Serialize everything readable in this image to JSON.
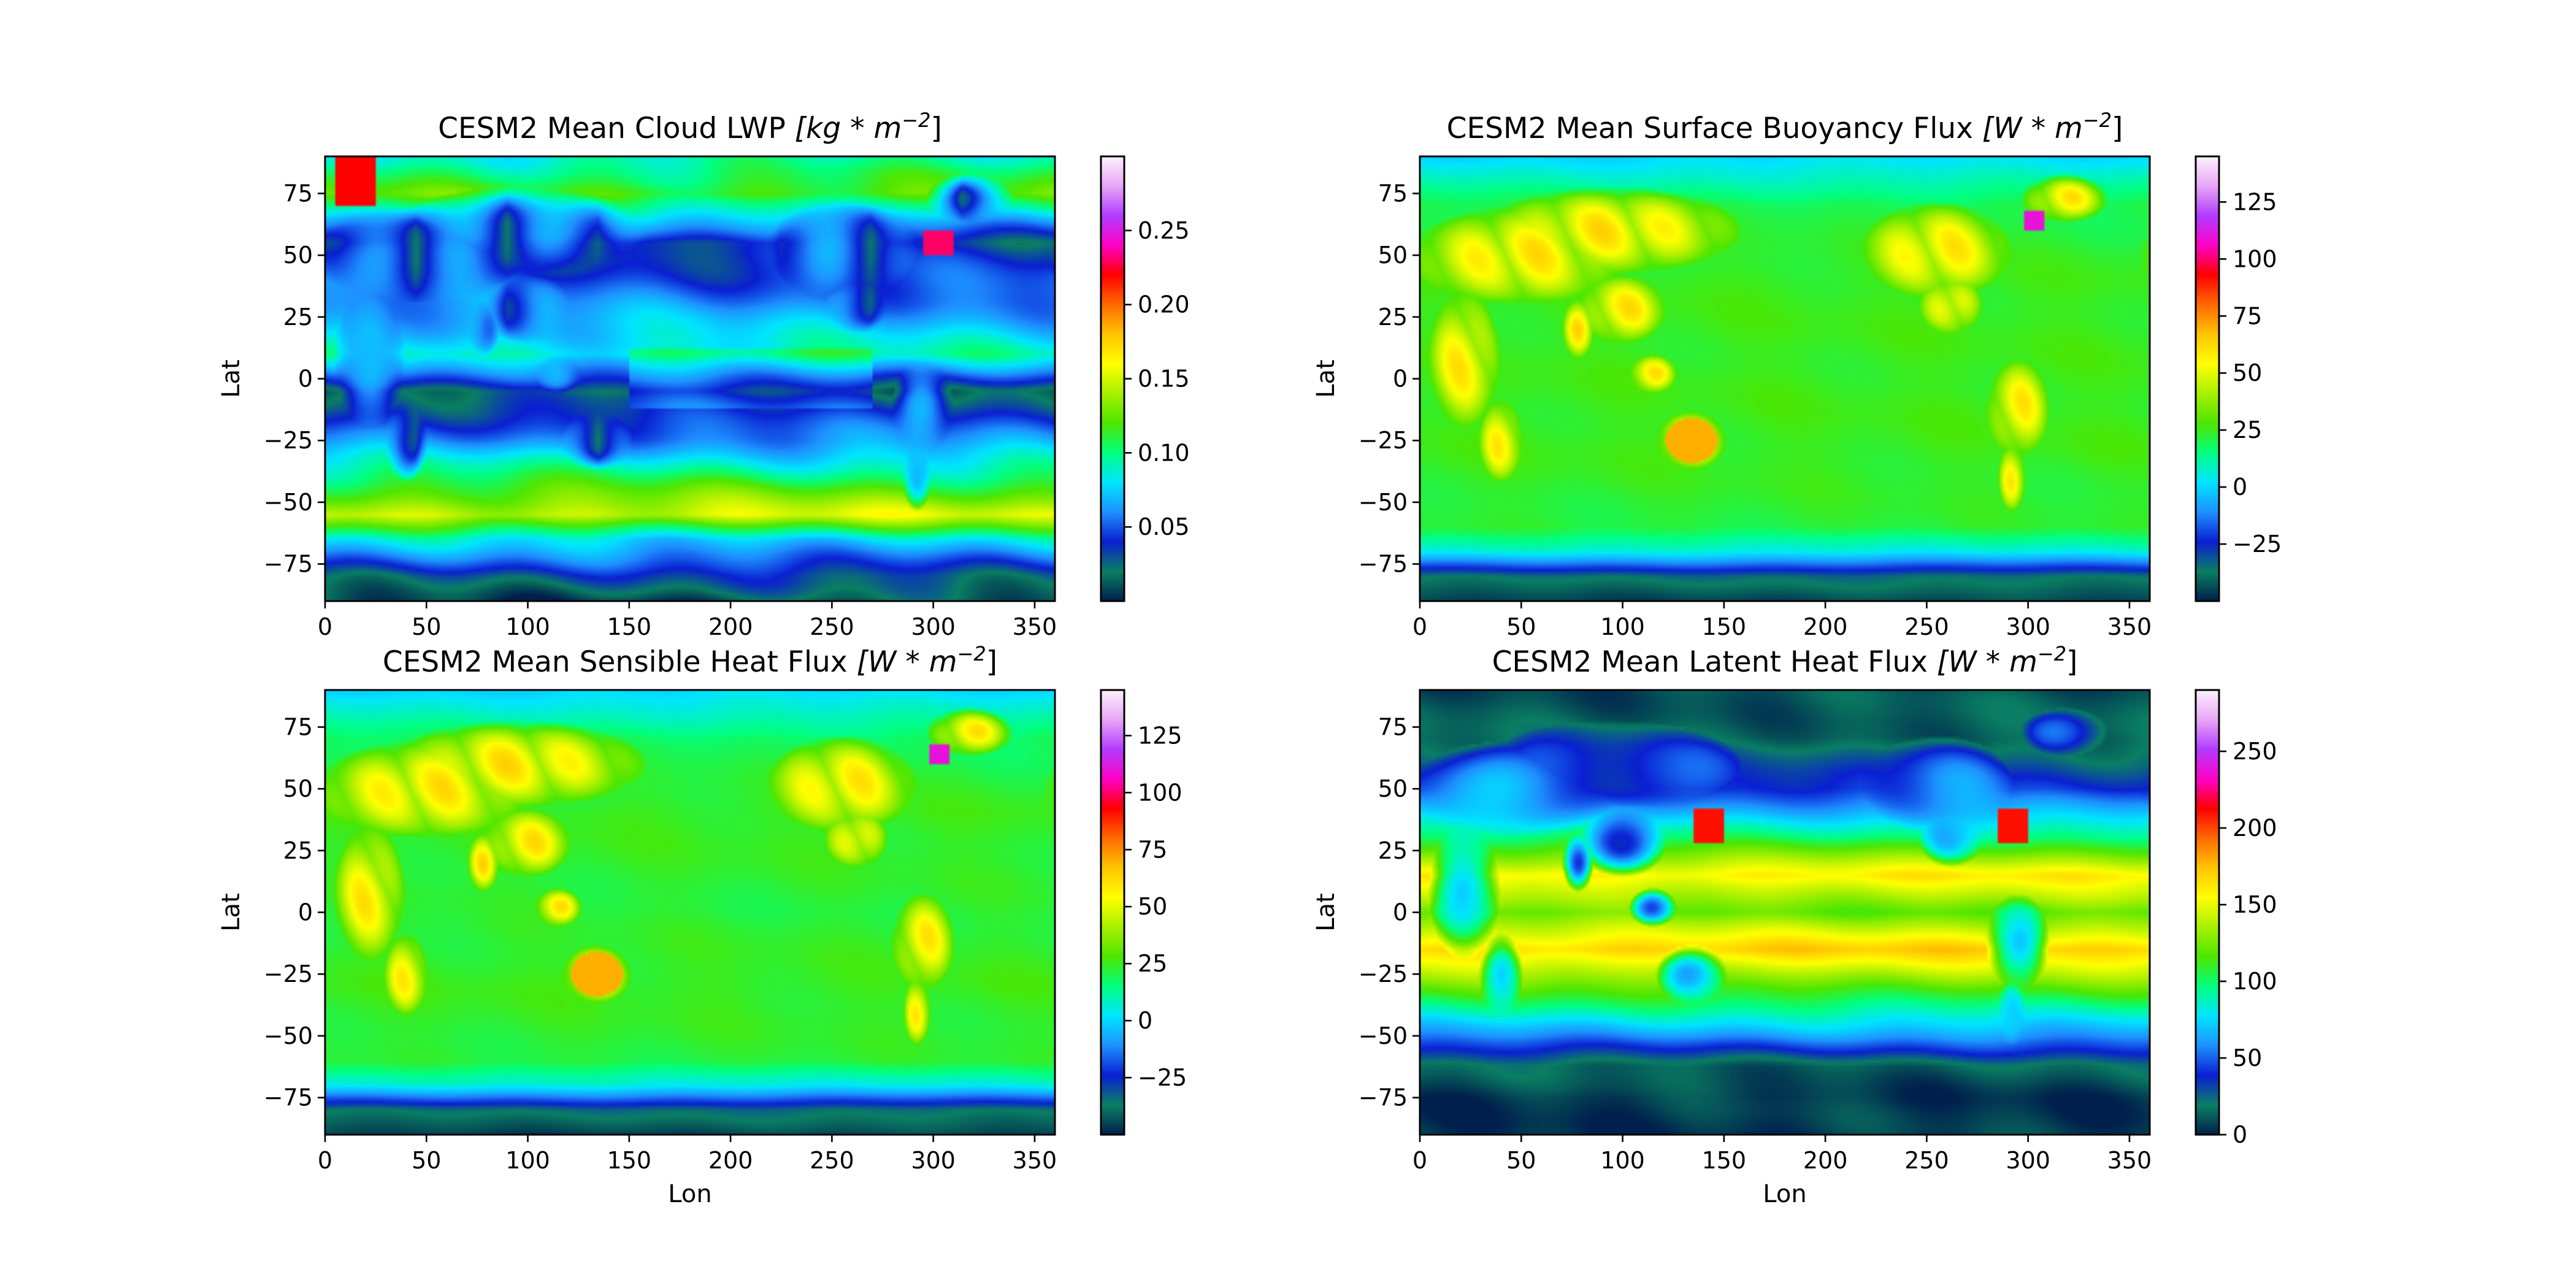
{
  "figure": {
    "colormap": "gist_ncar",
    "colormap_stops": [
      "#001f4d",
      "#0a7f62",
      "#0a1fd2",
      "#1e90ff",
      "#00e5ff",
      "#00ff80",
      "#4de600",
      "#a8f000",
      "#ffff00",
      "#ffc400",
      "#ff6a00",
      "#ff0000",
      "#ff00c8",
      "#b23cff",
      "#e8a6f5",
      "#fdf0fd"
    ]
  },
  "chart_data": [
    {
      "type": "heatmap",
      "title": "CESM2 Mean Cloud LWP ",
      "title_units": "[kg * m",
      "title_exp": "−2",
      "xlabel": "",
      "ylabel": "Lat",
      "xlim": [
        0,
        360
      ],
      "ylim": [
        -90,
        90
      ],
      "xticks": [
        "0",
        "50",
        "100",
        "150",
        "200",
        "250",
        "300",
        "350"
      ],
      "yticks": [
        "75",
        "50",
        "25",
        "0",
        "−25",
        "−50",
        "−75"
      ],
      "colorbar": {
        "range": [
          0.0,
          0.3
        ],
        "ticks": [
          "0.05",
          "0.10",
          "0.15",
          "0.20",
          "0.25"
        ],
        "tick_values": [
          0.05,
          0.1,
          0.15,
          0.2,
          0.25
        ]
      },
      "field": "lwp",
      "approximate_zonal_profile": {
        "lat": [
          90,
          75,
          55,
          30,
          10,
          -5,
          -25,
          -45,
          -55,
          -65,
          -80,
          -90
        ],
        "value": [
          0.09,
          0.12,
          0.03,
          0.06,
          0.09,
          0.02,
          0.06,
          0.12,
          0.15,
          0.08,
          0.03,
          0.01
        ]
      }
    },
    {
      "type": "heatmap",
      "title": "CESM2 Mean Surface Buoyancy Flux ",
      "title_units": "[W * m",
      "title_exp": "−2",
      "xlabel": "",
      "ylabel": "Lat",
      "xlim": [
        0,
        360
      ],
      "ylim": [
        -90,
        90
      ],
      "xticks": [
        "0",
        "50",
        "100",
        "150",
        "200",
        "250",
        "300",
        "350"
      ],
      "yticks": [
        "75",
        "50",
        "25",
        "0",
        "−25",
        "−50",
        "−75"
      ],
      "colorbar": {
        "range": [
          -50,
          145
        ],
        "ticks": [
          "−25",
          "0",
          "25",
          "50",
          "75",
          "100",
          "125"
        ],
        "tick_values": [
          -25,
          0,
          25,
          50,
          75,
          100,
          125
        ]
      },
      "field": "buoyancy",
      "approximate_zonal_profile": {
        "lat": [
          90,
          70,
          40,
          0,
          -30,
          -60,
          -70,
          -80,
          -90
        ],
        "value": [
          0,
          20,
          25,
          25,
          25,
          22,
          5,
          -35,
          -45
        ]
      }
    },
    {
      "type": "heatmap",
      "title": "CESM2 Mean Sensible Heat Flux ",
      "title_units": "[W * m",
      "title_exp": "−2",
      "xlabel": "Lon",
      "ylabel": "Lat",
      "xlim": [
        0,
        360
      ],
      "ylim": [
        -90,
        90
      ],
      "xticks": [
        "0",
        "50",
        "100",
        "150",
        "200",
        "250",
        "300",
        "350"
      ],
      "yticks": [
        "75",
        "50",
        "25",
        "0",
        "−25",
        "−50",
        "−75"
      ],
      "colorbar": {
        "range": [
          -50,
          145
        ],
        "ticks": [
          "−25",
          "0",
          "25",
          "50",
          "75",
          "100",
          "125"
        ],
        "tick_values": [
          -25,
          0,
          25,
          50,
          75,
          100,
          125
        ]
      },
      "field": "sensible",
      "approximate_zonal_profile": {
        "lat": [
          90,
          70,
          40,
          0,
          -30,
          -60,
          -70,
          -80,
          -90
        ],
        "value": [
          0,
          18,
          25,
          22,
          25,
          22,
          5,
          -35,
          -45
        ]
      }
    },
    {
      "type": "heatmap",
      "title": "CESM2 Mean Latent Heat Flux ",
      "title_units": "[W * m",
      "title_exp": "−2",
      "xlabel": "Lon",
      "ylabel": "Lat",
      "xlim": [
        0,
        360
      ],
      "ylim": [
        -90,
        90
      ],
      "xticks": [
        "0",
        "50",
        "100",
        "150",
        "200",
        "250",
        "300",
        "350"
      ],
      "yticks": [
        "75",
        "50",
        "25",
        "0",
        "−25",
        "−50",
        "−75"
      ],
      "colorbar": {
        "range": [
          0,
          290
        ],
        "ticks": [
          "0",
          "50",
          "100",
          "150",
          "200",
          "250"
        ],
        "tick_values": [
          0,
          50,
          100,
          150,
          200,
          250
        ]
      },
      "field": "latent",
      "approximate_zonal_profile": {
        "lat": [
          90,
          70,
          50,
          30,
          15,
          0,
          -15,
          -30,
          -50,
          -62,
          -75,
          -90
        ],
        "value": [
          10,
          15,
          40,
          100,
          160,
          120,
          170,
          120,
          60,
          15,
          5,
          5
        ]
      }
    }
  ]
}
